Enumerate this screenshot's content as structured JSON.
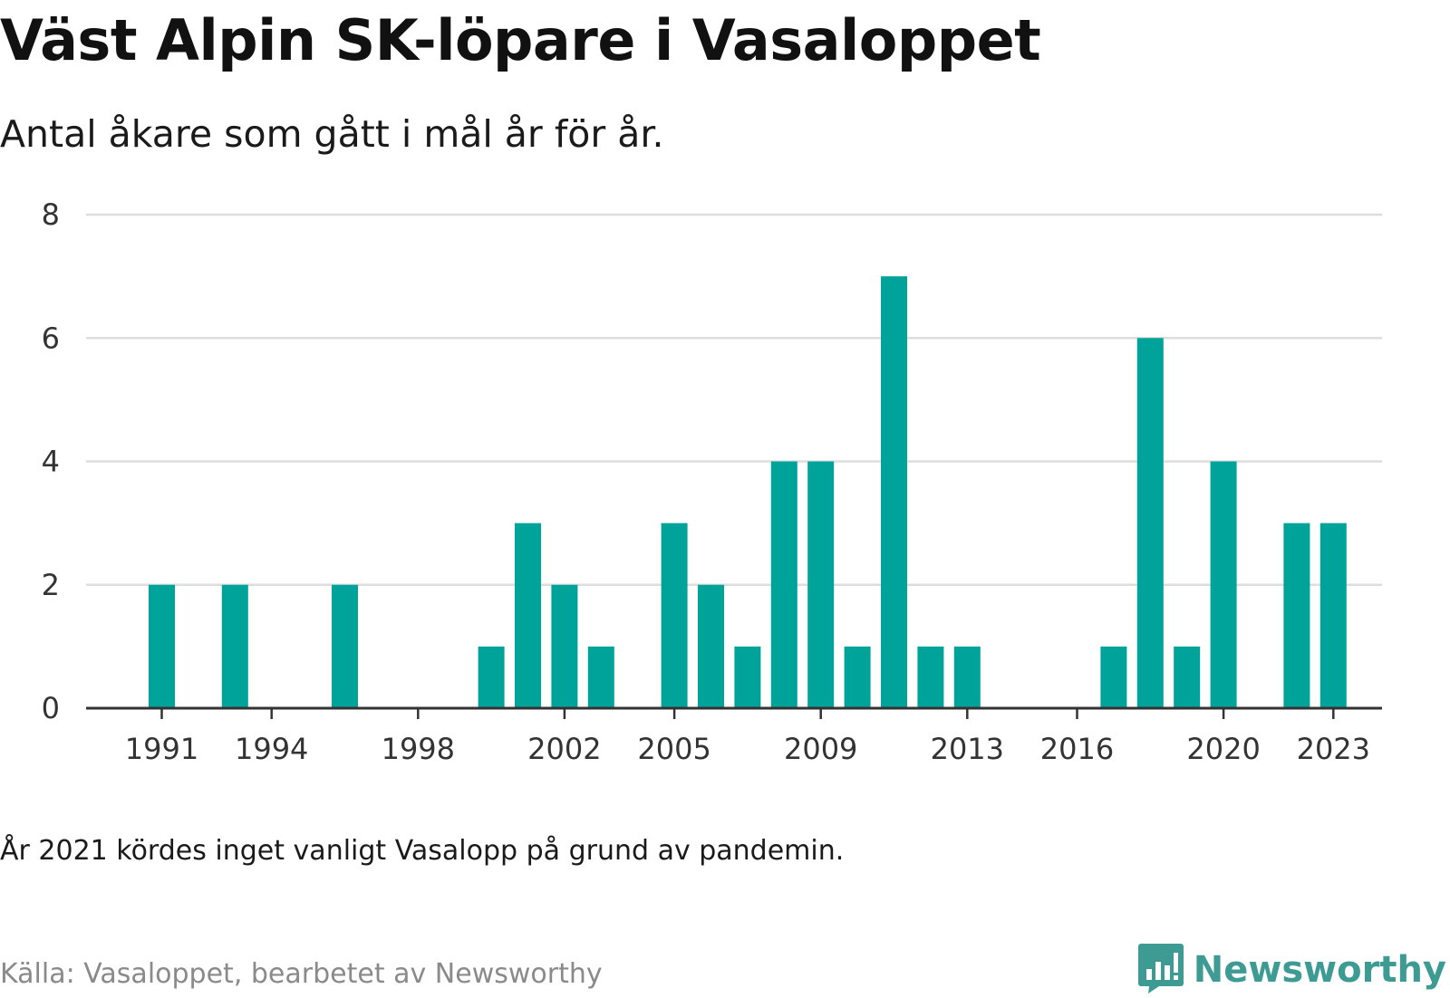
{
  "header": {
    "title": "Väst Alpin SK-löpare i Vasaloppet",
    "subtitle": "Antal åkare som gått i mål år för år."
  },
  "footer": {
    "note": "År 2021 kördes inget vanligt Vasalopp på grund av pandemin.",
    "source": "Källa: Vasaloppet, bearbetet av Newsworthy",
    "logo_text": "Newsworthy",
    "logo_icon": "bar-chart-speech-bubble-icon"
  },
  "colors": {
    "bar": "#00a39a",
    "grid": "#dddddd",
    "axis": "#333333",
    "logo": "#3d9b93"
  },
  "chart_data": {
    "type": "bar",
    "x": [
      1991,
      1992,
      1993,
      1994,
      1995,
      1996,
      1997,
      1998,
      1999,
      2000,
      2001,
      2002,
      2003,
      2004,
      2005,
      2006,
      2007,
      2008,
      2009,
      2010,
      2011,
      2012,
      2013,
      2014,
      2015,
      2016,
      2017,
      2018,
      2019,
      2020,
      2021,
      2022,
      2023
    ],
    "values": [
      2,
      0,
      2,
      0,
      0,
      2,
      0,
      0,
      0,
      1,
      3,
      2,
      1,
      0,
      3,
      2,
      1,
      4,
      4,
      1,
      7,
      1,
      1,
      0,
      0,
      0,
      1,
      6,
      1,
      4,
      0,
      3,
      3
    ],
    "x_ticks": [
      1991,
      1994,
      1998,
      2002,
      2005,
      2009,
      2013,
      2016,
      2020,
      2023
    ],
    "y_ticks": [
      0,
      2,
      4,
      6,
      8
    ],
    "ylim": [
      0,
      8
    ],
    "grid": true,
    "title": "Väst Alpin SK-löpare i Vasaloppet",
    "xlabel": "",
    "ylabel": ""
  }
}
